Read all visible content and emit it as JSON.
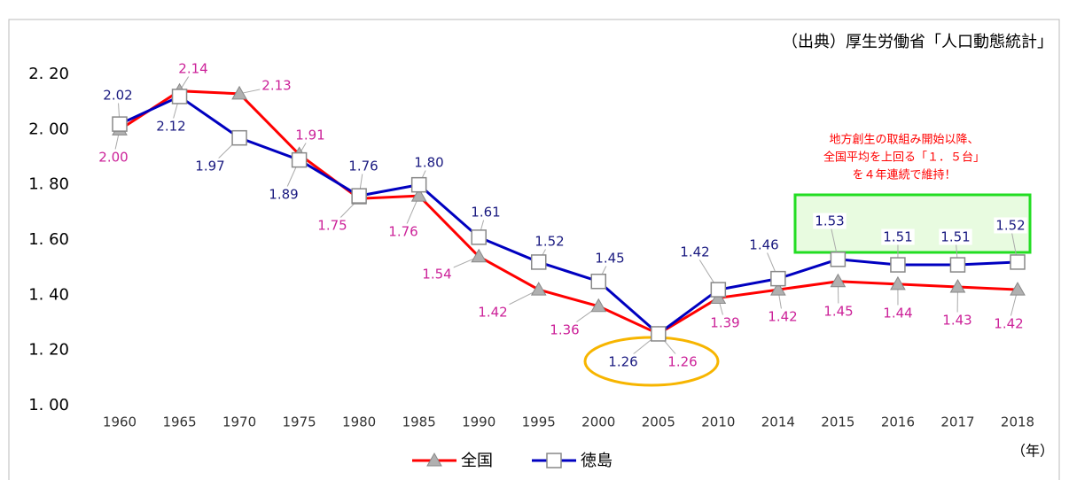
{
  "chart_data": {
    "type": "line",
    "source": "（出典）厚生労働省「人口動態統計」",
    "annotation": [
      "地方創生の取組み開始以降、",
      "全国平均を上回る「１．５台」",
      "を４年連続で維持！"
    ],
    "x_unit": "（年）",
    "categories": [
      "1960",
      "1965",
      "1970",
      "1975",
      "1980",
      "1985",
      "1990",
      "1995",
      "2000",
      "2005",
      "2010",
      "2014",
      "2015",
      "2016",
      "2017",
      "2018"
    ],
    "series": [
      {
        "name": "全国",
        "color": "#ff0000",
        "marker": "triangle",
        "values": [
          2.0,
          2.14,
          2.13,
          1.91,
          1.75,
          1.76,
          1.54,
          1.42,
          1.36,
          1.26,
          1.39,
          1.42,
          1.45,
          1.44,
          1.43,
          1.42
        ],
        "value_labels": [
          "2.00",
          "2.14",
          "2.13",
          "1.91",
          "1.75",
          "1.76",
          "1.54",
          "1.42",
          "1.36",
          "1.26",
          "1.39",
          "1.42",
          "1.45",
          "1.44",
          "1.43",
          "1.42"
        ]
      },
      {
        "name": "徳島",
        "color": "#0000c0",
        "marker": "square",
        "values": [
          2.02,
          2.12,
          1.97,
          1.89,
          1.76,
          1.8,
          1.61,
          1.52,
          1.45,
          1.26,
          1.42,
          1.46,
          1.53,
          1.51,
          1.51,
          1.52
        ],
        "value_labels": [
          "2.02",
          "2.12",
          "1.97",
          "1.89",
          "1.76",
          "1.80",
          "1.61",
          "1.52",
          "1.45",
          "1.26",
          "1.42",
          "1.46",
          "1.53",
          "1.51",
          "1.51",
          "1.52"
        ]
      }
    ],
    "ylim": [
      1.0,
      2.2
    ],
    "yticks": [
      {
        "value": 1.0,
        "label": "1. 00"
      },
      {
        "value": 1.2,
        "label": "1. 20"
      },
      {
        "value": 1.4,
        "label": "1. 40"
      },
      {
        "value": 1.6,
        "label": "1. 60"
      },
      {
        "value": 1.8,
        "label": "1. 80"
      },
      {
        "value": 2.0,
        "label": "2. 00"
      },
      {
        "value": 2.2,
        "label": "2. 20"
      }
    ],
    "grid": false,
    "legend": "bottom"
  }
}
